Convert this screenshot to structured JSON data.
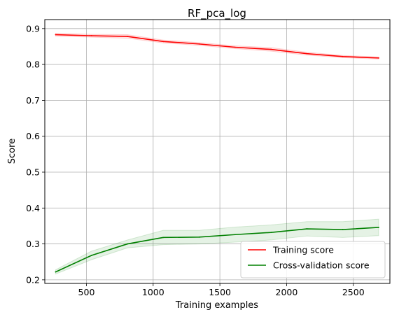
{
  "chart_data": {
    "type": "line",
    "title": "RF_pca_log",
    "xlabel": "Training examples",
    "ylabel": "Score",
    "xlim": [
      188,
      2774
    ],
    "ylim": [
      0.19,
      0.925
    ],
    "xticks": [
      500,
      1000,
      1500,
      2000,
      2500
    ],
    "yticks": [
      0.2,
      0.3,
      0.4,
      0.5,
      0.6,
      0.7,
      0.8,
      0.9
    ],
    "grid": true,
    "legend_position": "lower-right",
    "series": [
      {
        "name": "Training score",
        "color": "#ff0000",
        "x": [
          269,
          538,
          807,
          1076,
          1345,
          1614,
          1883,
          2152,
          2421,
          2690
        ],
        "y": [
          0.883,
          0.88,
          0.878,
          0.864,
          0.857,
          0.848,
          0.842,
          0.83,
          0.822,
          0.818
        ],
        "y_lower": [
          0.879,
          0.876,
          0.873,
          0.86,
          0.853,
          0.844,
          0.837,
          0.826,
          0.819,
          0.815
        ],
        "y_upper": [
          0.887,
          0.884,
          0.883,
          0.868,
          0.861,
          0.852,
          0.847,
          0.834,
          0.825,
          0.821
        ]
      },
      {
        "name": "Cross-validation score",
        "color": "#008000",
        "x": [
          269,
          538,
          807,
          1076,
          1345,
          1614,
          1883,
          2152,
          2421,
          2690
        ],
        "y": [
          0.222,
          0.268,
          0.3,
          0.318,
          0.319,
          0.326,
          0.332,
          0.342,
          0.34,
          0.346
        ],
        "y_lower": [
          0.216,
          0.256,
          0.289,
          0.298,
          0.3,
          0.305,
          0.311,
          0.322,
          0.318,
          0.323
        ],
        "y_upper": [
          0.228,
          0.28,
          0.311,
          0.338,
          0.338,
          0.347,
          0.353,
          0.362,
          0.362,
          0.369
        ]
      }
    ]
  }
}
